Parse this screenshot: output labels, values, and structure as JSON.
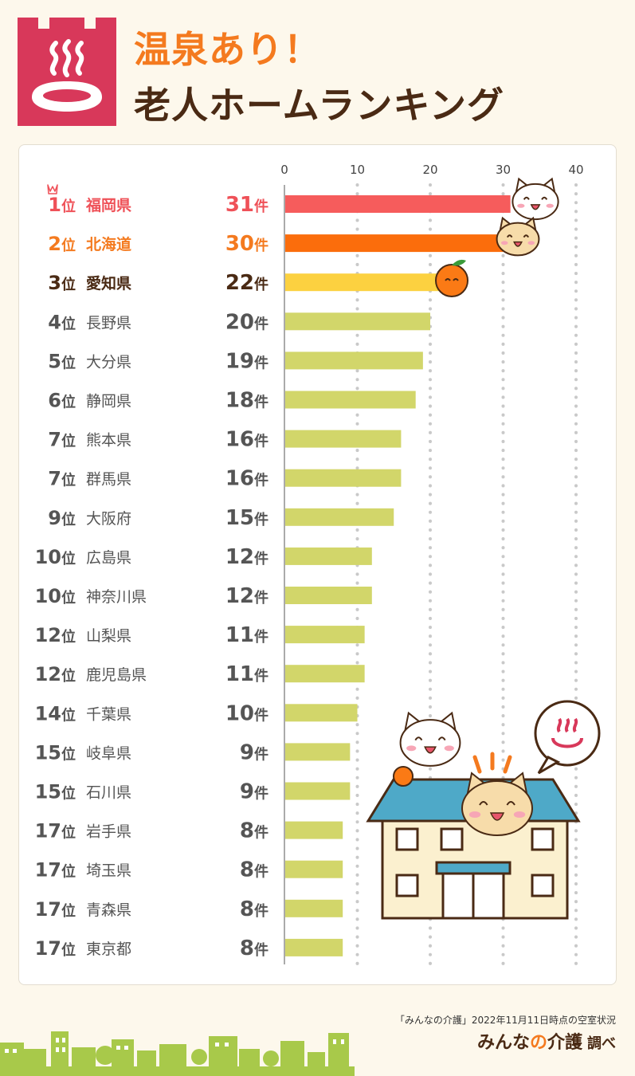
{
  "title": {
    "line1": "温泉あり！",
    "line2": "老人ホームランキング"
  },
  "chart_data": {
    "type": "bar",
    "orientation": "horizontal",
    "title": "温泉あり！老人ホームランキング",
    "xlim": [
      0,
      40
    ],
    "ticks": [
      "0",
      "10",
      "20",
      "30",
      "40"
    ],
    "tick_values": [
      0,
      10,
      20,
      30,
      40
    ],
    "rank_suffix": "位",
    "value_suffix": "件",
    "rows": [
      {
        "rank": "1",
        "name": "福岡県",
        "value": 31
      },
      {
        "rank": "2",
        "name": "北海道",
        "value": 30
      },
      {
        "rank": "3",
        "name": "愛知県",
        "value": 22
      },
      {
        "rank": "4",
        "name": "長野県",
        "value": 20
      },
      {
        "rank": "5",
        "name": "大分県",
        "value": 19
      },
      {
        "rank": "6",
        "name": "静岡県",
        "value": 18
      },
      {
        "rank": "7",
        "name": "熊本県",
        "value": 16
      },
      {
        "rank": "7",
        "name": "群馬県",
        "value": 16
      },
      {
        "rank": "9",
        "name": "大阪府",
        "value": 15
      },
      {
        "rank": "10",
        "name": "広島県",
        "value": 12
      },
      {
        "rank": "10",
        "name": "神奈川県",
        "value": 12
      },
      {
        "rank": "12",
        "name": "山梨県",
        "value": 11
      },
      {
        "rank": "12",
        "name": "鹿児島県",
        "value": 11
      },
      {
        "rank": "14",
        "name": "千葉県",
        "value": 10
      },
      {
        "rank": "15",
        "name": "岐阜県",
        "value": 9
      },
      {
        "rank": "15",
        "name": "石川県",
        "value": 9
      },
      {
        "rank": "17",
        "name": "岩手県",
        "value": 8
      },
      {
        "rank": "17",
        "name": "埼玉県",
        "value": 8
      },
      {
        "rank": "17",
        "name": "青森県",
        "value": 8
      },
      {
        "rank": "17",
        "name": "東京都",
        "value": 8
      }
    ],
    "colors": {
      "first": "#f65c5c",
      "second": "#fb6d0c",
      "third": "#fcd140",
      "rest": "#d2d66a",
      "text_first": "#ef5158",
      "text_second": "#f47a1f",
      "text_third": "#4a2a14",
      "text_rest": "#555555"
    }
  },
  "footer": {
    "source": "「みんなの介護」2022年11月11日時点の空室状況",
    "brand_part1": "みんな",
    "brand_part2": "の",
    "brand_part3": "介護",
    "brand_suffix": "調べ"
  },
  "colors": {
    "accent": "#f47a1f",
    "brown": "#4a2a14",
    "icon_bg": "#d8385a"
  }
}
